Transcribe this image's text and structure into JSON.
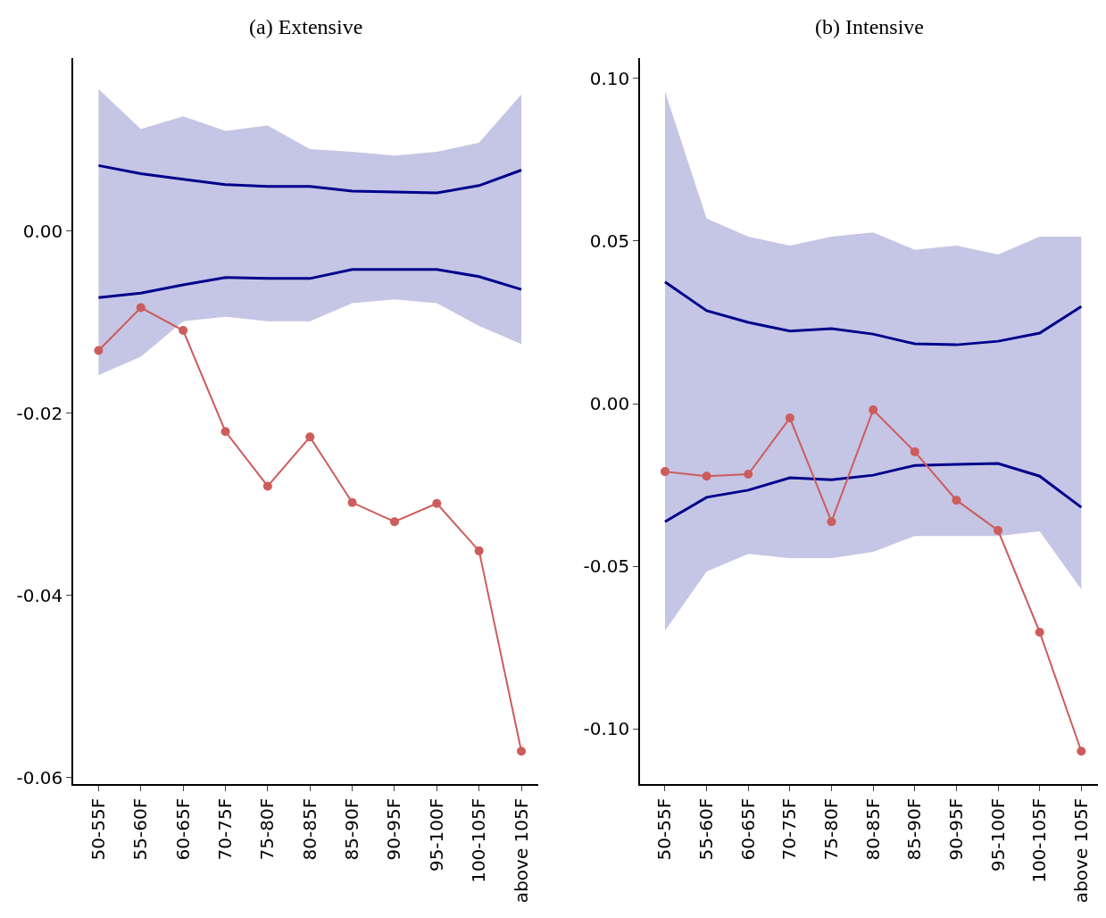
{
  "chart_data": [
    {
      "type": "line",
      "title": "(a) Extensive",
      "categories": [
        "50-55F",
        "55-60F",
        "60-65F",
        "70-75F",
        "75-80F",
        "80-85F",
        "85-90F",
        "90-95F",
        "95-100F",
        "100-105F",
        "above 105F"
      ],
      "ylim": [
        -0.0607,
        0.019
      ],
      "yticks": [
        {
          "value": -0.06,
          "label": "-0.06"
        },
        {
          "value": -0.04,
          "label": "-0.04"
        },
        {
          "value": -0.02,
          "label": "-0.02"
        },
        {
          "value": 0,
          "label": "0.00"
        }
      ],
      "series": [
        {
          "color": "#5a5ab4",
          "values": [
            null,
            null,
            null,
            null,
            null,
            null,
            null,
            null,
            null,
            null,
            null
          ],
          "lower": [
            -0.0158,
            -0.0138,
            -0.0099,
            -0.0094,
            -0.0099,
            -0.0099,
            -0.0079,
            -0.0075,
            -0.0079,
            -0.0104,
            -0.0124
          ],
          "upper": [
            0.0156,
            0.0112,
            0.0126,
            0.011,
            0.0116,
            0.009,
            0.0087,
            0.0083,
            0.0087,
            0.0097,
            0.015
          ],
          "marker": "none"
        },
        {
          "color": "#00008b",
          "values": [
            0.0072,
            0.0063,
            0.0057,
            0.0051,
            0.0049,
            0.0049,
            0.0044,
            0.0043,
            0.0042,
            0.005,
            0.0067
          ],
          "marker": "none"
        },
        {
          "color": "#00008b",
          "values": [
            -0.0073,
            -0.0068,
            -0.0059,
            -0.0051,
            -0.0052,
            -0.0052,
            -0.0042,
            -0.0042,
            -0.0042,
            -0.005,
            -0.0064
          ],
          "marker": "none"
        },
        {
          "color": "#cd5c5c",
          "values": [
            -0.0131,
            -0.0084,
            -0.0109,
            -0.022,
            -0.028,
            -0.0226,
            -0.0298,
            -0.0319,
            -0.0299,
            -0.0351,
            -0.0571
          ],
          "marker": "circle"
        }
      ]
    },
    {
      "type": "line",
      "title": "(b) Intensive",
      "categories": [
        "50-55F",
        "55-60F",
        "60-65F",
        "70-75F",
        "75-80F",
        "80-85F",
        "85-90F",
        "90-95F",
        "95-100F",
        "100-105F",
        "above 105F"
      ],
      "ylim": [
        -0.117,
        0.1063
      ],
      "yticks": [
        {
          "value": -0.1,
          "label": "-0.10"
        },
        {
          "value": -0.05,
          "label": "-0.05"
        },
        {
          "value": 0,
          "label": "0.00"
        },
        {
          "value": 0.05,
          "label": "0.05"
        },
        {
          "value": 0.1,
          "label": "0.10"
        }
      ],
      "series": [
        {
          "color": "#5a5ab4",
          "values": [
            null,
            null,
            null,
            null,
            null,
            null,
            null,
            null,
            null,
            null,
            null
          ],
          "lower": [
            -0.0698,
            -0.0516,
            -0.0462,
            -0.0475,
            -0.0475,
            -0.0456,
            -0.0407,
            -0.0407,
            -0.0407,
            -0.0393,
            -0.0571
          ],
          "upper": [
            0.096,
            0.0569,
            0.0514,
            0.0486,
            0.0514,
            0.0527,
            0.0473,
            0.0486,
            0.0459,
            0.0514,
            0.0514
          ],
          "marker": "none"
        },
        {
          "color": "#00008b",
          "values": [
            0.0374,
            0.0286,
            0.025,
            0.0223,
            0.0231,
            0.0214,
            0.0184,
            0.0181,
            0.0192,
            0.0217,
            0.0299
          ],
          "marker": "none"
        },
        {
          "color": "#00008b",
          "values": [
            -0.0363,
            -0.0288,
            -0.0266,
            -0.0228,
            -0.0234,
            -0.022,
            -0.019,
            -0.0187,
            -0.0184,
            -0.0223,
            -0.0319
          ],
          "marker": "none"
        },
        {
          "color": "#cd5c5c",
          "values": [
            -0.0209,
            -0.0223,
            -0.0217,
            -0.0044,
            -0.0363,
            -0.0019,
            -0.0148,
            -0.0297,
            -0.039,
            -0.0703,
            -0.1069
          ],
          "marker": "circle"
        }
      ]
    }
  ]
}
